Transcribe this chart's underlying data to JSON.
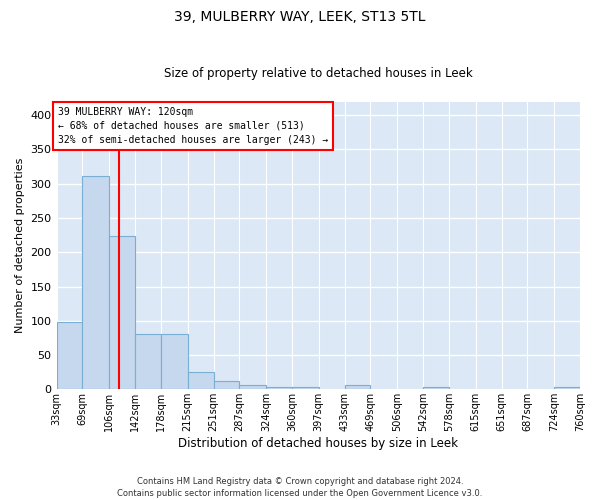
{
  "title": "39, MULBERRY WAY, LEEK, ST13 5TL",
  "subtitle": "Size of property relative to detached houses in Leek",
  "xlabel": "Distribution of detached houses by size in Leek",
  "ylabel": "Number of detached properties",
  "bar_color": "#c5d8ed",
  "bar_edge_color": "#7aafd4",
  "background_color": "#dce8f5",
  "fig_background": "#ffffff",
  "grid_color": "#ffffff",
  "red_line_x": 120,
  "annotation_line1": "39 MULBERRY WAY: 120sqm",
  "annotation_line2": "← 68% of detached houses are smaller (513)",
  "annotation_line3": "32% of semi-detached houses are larger (243) →",
  "bins": [
    33,
    69,
    106,
    142,
    178,
    215,
    251,
    287,
    324,
    360,
    397,
    433,
    469,
    506,
    542,
    578,
    615,
    651,
    687,
    724,
    760
  ],
  "bin_labels": [
    "33sqm",
    "69sqm",
    "106sqm",
    "142sqm",
    "178sqm",
    "215sqm",
    "251sqm",
    "287sqm",
    "324sqm",
    "360sqm",
    "397sqm",
    "433sqm",
    "469sqm",
    "506sqm",
    "542sqm",
    "578sqm",
    "615sqm",
    "651sqm",
    "687sqm",
    "724sqm",
    "760sqm"
  ],
  "values": [
    98,
    312,
    224,
    80,
    80,
    25,
    12,
    6,
    4,
    4,
    0,
    6,
    0,
    0,
    4,
    0,
    0,
    0,
    0,
    4,
    0
  ],
  "ylim": [
    0,
    420
  ],
  "yticks": [
    0,
    50,
    100,
    150,
    200,
    250,
    300,
    350,
    400
  ],
  "footer_line1": "Contains HM Land Registry data © Crown copyright and database right 2024.",
  "footer_line2": "Contains public sector information licensed under the Open Government Licence v3.0."
}
